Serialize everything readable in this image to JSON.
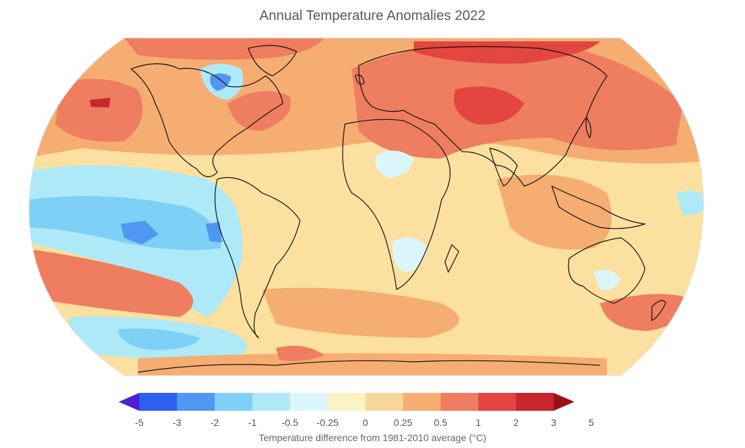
{
  "title": "Annual Temperature Anomalies 2022",
  "legend": {
    "ticks": [
      "-5",
      "-3",
      "-2",
      "-1",
      "-0.5",
      "-0.25",
      "0",
      "0.25",
      "0.5",
      "1",
      "2",
      "3",
      "5"
    ],
    "colors": [
      "#4a1fd6",
      "#2f5fee",
      "#4f97f0",
      "#7fd0f6",
      "#aee9f8",
      "#dcf7fb",
      "#fbf3c4",
      "#f9d79a",
      "#f5ad72",
      "#ef7d60",
      "#e2463f",
      "#c7272e",
      "#9e0d1e"
    ],
    "axis_label": "Temperature difference from 1981-2010 average (°C)"
  },
  "map": {
    "base_color": "#fbe0a0",
    "ocean_warm": "#f5ad72",
    "ocean_cool": "#aee9f8",
    "coastline_color": "#111111"
  }
}
